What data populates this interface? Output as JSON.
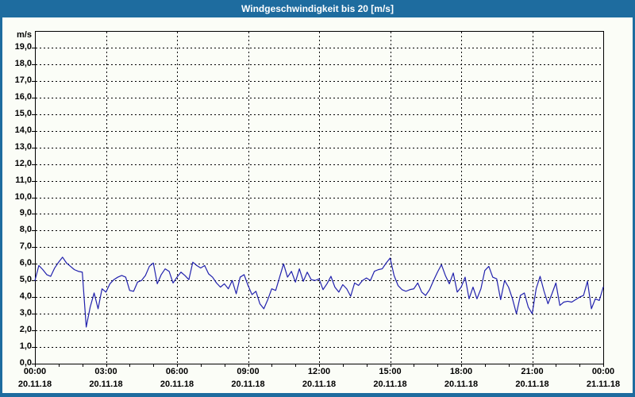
{
  "window": {
    "title_bar": {
      "title": "Windgeschwindigkeit bis 20 [m/s]"
    }
  },
  "colors": {
    "titlebar": "#1e6c9f",
    "window_border": "#1e6c9f",
    "background": "#fbfdf7",
    "line": "#2121ad",
    "grid": "#000000",
    "text": "#000000"
  },
  "chart_data": {
    "type": "line",
    "title": "Windgeschwindigkeit bis 20 [m/s]",
    "y_unit": "m/s",
    "ylim": [
      0,
      20
    ],
    "ytick_interval": 1.0,
    "ytick_label_max": 19.0,
    "decimal_separator": ",",
    "grid": "dashed",
    "legend": "none",
    "x_axis": {
      "span_hours": 24,
      "major_tick_hours": 3,
      "minor_tick_hours": 1,
      "labels": [
        {
          "time": "00:00",
          "date": "20.11.18"
        },
        {
          "time": "03:00",
          "date": "20.11.18"
        },
        {
          "time": "06:00",
          "date": "20.11.18"
        },
        {
          "time": "09:00",
          "date": "20.11.18"
        },
        {
          "time": "12:00",
          "date": "20.11.18"
        },
        {
          "time": "15:00",
          "date": "20.11.18"
        },
        {
          "time": "18:00",
          "date": "20.11.18"
        },
        {
          "time": "21:00",
          "date": "20.11.18"
        },
        {
          "time": "00:00",
          "date": "21.11.18"
        }
      ]
    },
    "series": [
      {
        "name": "Windgeschwindigkeit",
        "unit": "m/s",
        "sample_interval_minutes": 10,
        "start": "20.11.18 00:00",
        "end": "21.11.18 00:00",
        "values": [
          5.0,
          5.9,
          5.65,
          5.35,
          5.25,
          5.75,
          6.1,
          6.4,
          6.05,
          5.85,
          5.65,
          5.55,
          5.5,
          2.2,
          3.4,
          4.25,
          3.3,
          4.5,
          4.3,
          4.8,
          5.05,
          5.2,
          5.3,
          5.2,
          4.4,
          4.35,
          4.9,
          5.0,
          5.3,
          5.85,
          6.05,
          4.8,
          5.35,
          5.7,
          5.55,
          4.85,
          5.2,
          5.5,
          5.3,
          5.05,
          6.1,
          5.9,
          5.75,
          5.9,
          5.4,
          5.2,
          4.85,
          4.6,
          4.8,
          4.5,
          5.0,
          4.2,
          5.2,
          5.35,
          4.7,
          4.15,
          4.35,
          3.6,
          3.3,
          3.85,
          4.5,
          4.4,
          5.2,
          6.0,
          5.2,
          5.55,
          4.9,
          5.7,
          4.95,
          5.5,
          5.05,
          5.0,
          5.1,
          4.45,
          4.8,
          5.25,
          4.6,
          4.3,
          4.75,
          4.5,
          4.05,
          4.85,
          4.7,
          5.0,
          5.15,
          5.0,
          5.55,
          5.65,
          5.7,
          6.05,
          6.35,
          5.3,
          4.7,
          4.45,
          4.35,
          4.45,
          4.5,
          4.85,
          4.3,
          4.1,
          4.45,
          5.0,
          5.5,
          5.95,
          5.3,
          4.8,
          5.45,
          4.3,
          4.6,
          5.2,
          3.9,
          4.6,
          3.9,
          4.5,
          5.6,
          5.85,
          5.2,
          5.1,
          3.85,
          5.0,
          4.6,
          3.9,
          3.0,
          4.1,
          4.25,
          3.4,
          3.0,
          4.5,
          5.25,
          4.35,
          3.6,
          4.2,
          4.85,
          3.5,
          3.7,
          3.75,
          3.7,
          3.85,
          4.0,
          4.1,
          4.95,
          3.3,
          3.9,
          3.8,
          4.6
        ]
      }
    ]
  }
}
